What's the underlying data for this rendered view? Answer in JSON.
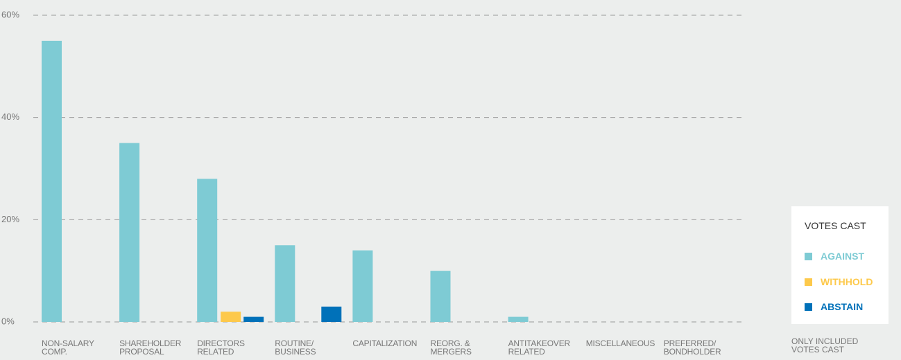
{
  "chart_data": {
    "type": "bar",
    "categories": [
      "NON-SALARY\nCOMP.",
      "SHAREHOLDER\nPROPOSAL",
      "DIRECTORS\nRELATED",
      "ROUTINE/\nBUSINESS",
      "CAPITALIZATION",
      "REORG. &\nMERGERS",
      "ANTITAKEOVER\nRELATED",
      "MISCELLANEOUS",
      "PREFERRED/\nBONDHOLDER"
    ],
    "series": [
      {
        "name": "AGAINST",
        "color": "#7ecbd4",
        "values": [
          55,
          35,
          28,
          15,
          14,
          10,
          1,
          0,
          0
        ]
      },
      {
        "name": "WITHHOLD",
        "color": "#fdc94b",
        "values": [
          0,
          0,
          2,
          0,
          0,
          0,
          0,
          0,
          0
        ]
      },
      {
        "name": "ABSTAIN",
        "color": "#0071b9",
        "values": [
          0,
          0,
          1,
          3,
          0,
          0,
          0,
          0,
          0
        ]
      }
    ],
    "ylim": [
      0,
      60
    ],
    "yticks": [
      {
        "value": 0,
        "label": "0%"
      },
      {
        "value": 20,
        "label": "20%"
      },
      {
        "value": 40,
        "label": "40%"
      },
      {
        "value": 60,
        "label": "60%"
      }
    ],
    "grid": true,
    "legend_title": "VOTES CAST",
    "note": "ONLY INCLUDED\nVOTES CAST"
  }
}
